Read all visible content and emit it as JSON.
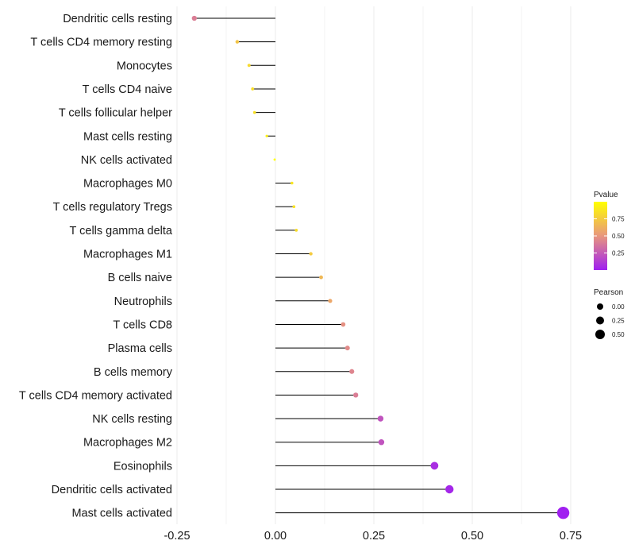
{
  "chart_data": {
    "type": "lollipop",
    "categories": [
      "Dendritic cells resting",
      "T cells CD4 memory resting",
      "Monocytes",
      "T cells CD4 naive",
      "T cells follicular helper",
      "Mast cells resting",
      "NK cells activated",
      "Macrophages M0",
      "T cells regulatory  Tregs ",
      "T cells gamma delta",
      "Macrophages M1",
      "B cells naive",
      "Neutrophils",
      "T cells CD8",
      "Plasma cells",
      "B cells memory",
      "T cells CD4 memory activated",
      "NK cells resting",
      "Macrophages M2",
      "Eosinophils",
      "Dendritic cells activated",
      "Mast cells activated"
    ],
    "values": [
      -0.206,
      -0.097,
      -0.067,
      -0.058,
      -0.053,
      -0.022,
      -0.002,
      0.042,
      0.047,
      0.053,
      0.09,
      0.116,
      0.139,
      0.172,
      0.183,
      0.194,
      0.204,
      0.267,
      0.269,
      0.404,
      0.442,
      0.731
    ],
    "pvalues": [
      0.4,
      0.72,
      0.82,
      0.84,
      0.85,
      0.93,
      1.0,
      0.88,
      0.86,
      0.84,
      0.75,
      0.66,
      0.58,
      0.48,
      0.45,
      0.43,
      0.4,
      0.22,
      0.22,
      0.06,
      0.03,
      0.0
    ],
    "xlim": [
      -0.25,
      0.75
    ],
    "xticks": [
      "-0.25",
      "0.00",
      "0.25",
      "0.50",
      "0.75"
    ],
    "xtick_values": [
      -0.25,
      0,
      0.25,
      0.5,
      0.75
    ],
    "colors": {
      "high": "#ffff00",
      "mid": "#e8967e",
      "low": "#a020f0",
      "stem": "#000000",
      "grid": "#ebebeb"
    },
    "legend": {
      "color_title": "Pvalue",
      "color_ticks": [
        "0.75",
        "0.50",
        "0.25"
      ],
      "color_tick_values": [
        0.75,
        0.5,
        0.25
      ],
      "size_title": "Pearson",
      "size_ticks": [
        "0.00",
        "0.25",
        "0.50"
      ],
      "size_tick_values": [
        0,
        0.25,
        0.5
      ]
    }
  }
}
